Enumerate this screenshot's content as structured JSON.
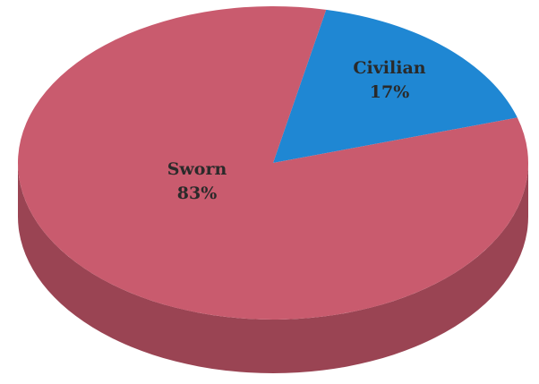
{
  "chart_data": {
    "type": "pie",
    "title": "",
    "style": "3d",
    "slices": [
      {
        "name": "Sworn",
        "value": 83,
        "value_label": "83%",
        "color": "#c95b6e",
        "side_color": "#9a4453"
      },
      {
        "name": "Civilian",
        "value": 17,
        "value_label": "17%",
        "color": "#1f87d3",
        "side_color": "#17649c"
      }
    ],
    "legend": "none",
    "data_labels": "inside"
  }
}
